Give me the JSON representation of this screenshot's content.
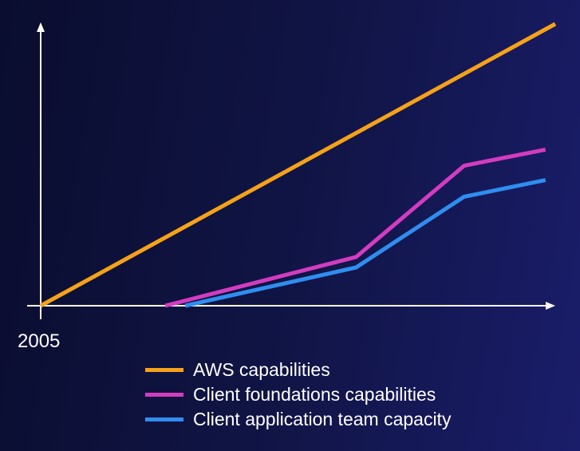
{
  "chart_data": {
    "type": "line",
    "title": "",
    "xlabel": "",
    "ylabel": "",
    "x_start_label": "2005",
    "xlim": [
      0,
      100
    ],
    "ylim": [
      0,
      100
    ],
    "grid": false,
    "legend_position": "bottom",
    "series": [
      {
        "name": "AWS capabilities",
        "color": "#f5a21a",
        "points": [
          [
            0,
            0
          ],
          [
            100,
            100
          ]
        ]
      },
      {
        "name": "Client foundations capabilities",
        "color": "#d33cc0",
        "points": [
          [
            24.2,
            0
          ],
          [
            61.3,
            17.3
          ],
          [
            82.3,
            49.7
          ],
          [
            98.1,
            55.4
          ]
        ]
      },
      {
        "name": "Client application team capacity",
        "color": "#2f8ef0",
        "points": [
          [
            28.1,
            0
          ],
          [
            61.3,
            13.6
          ],
          [
            82.3,
            38.7
          ],
          [
            98.1,
            44.6
          ]
        ]
      }
    ]
  }
}
